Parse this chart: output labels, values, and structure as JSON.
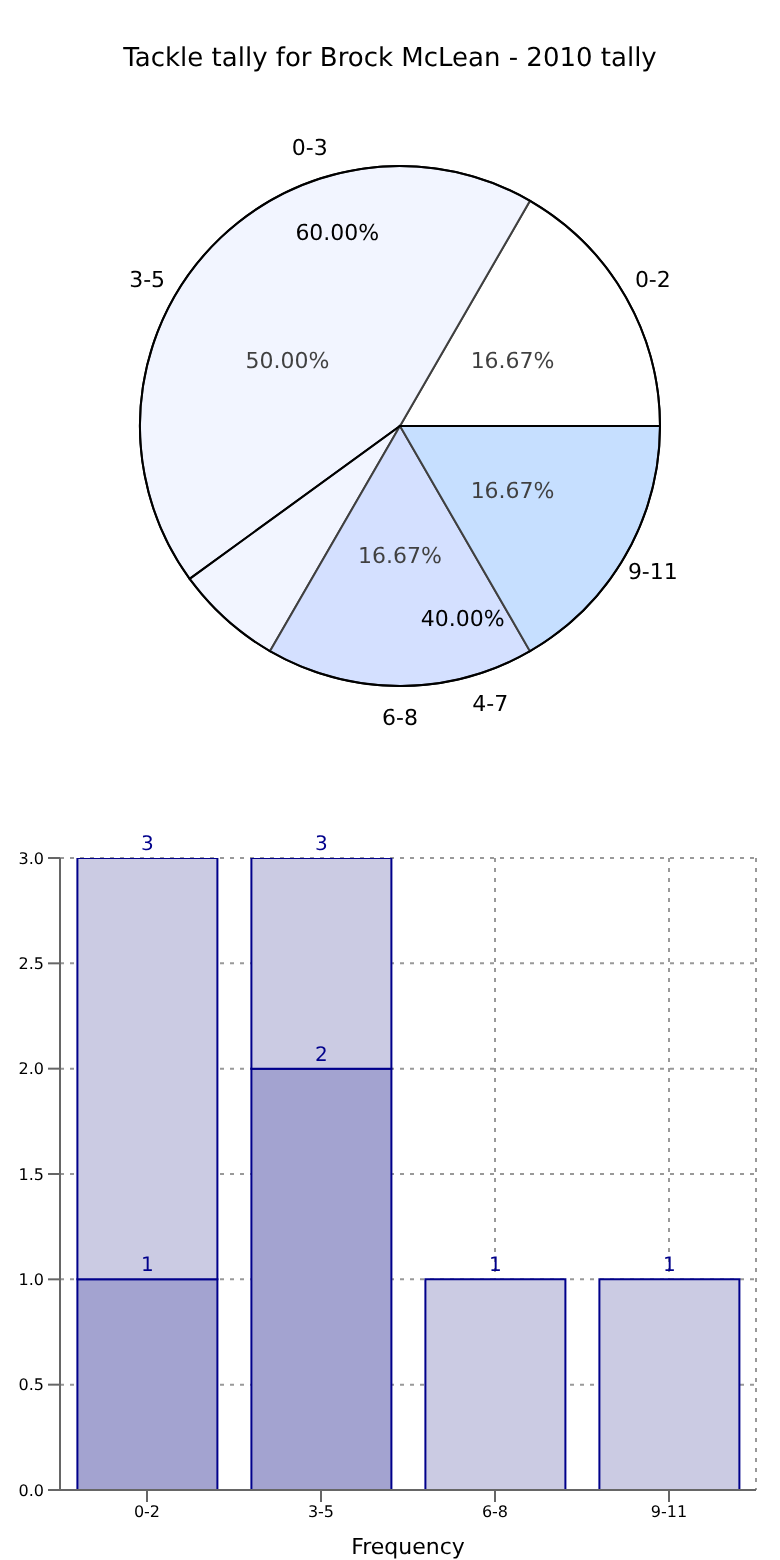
{
  "chart_data": [
    {
      "type": "pie",
      "title": "Tackle tally for Brock McLean - 2010 tally",
      "categories": [
        "0-3",
        "4-7"
      ],
      "values": [
        60,
        40
      ],
      "colors": [
        "#ffffff",
        "#ffffff"
      ],
      "value_labels": [
        "60.00%",
        "40.00%"
      ]
    },
    {
      "type": "pie",
      "categories": [
        "0-2",
        "3-5",
        "6-8",
        "9-11"
      ],
      "values": [
        16.67,
        50,
        16.67,
        16.67
      ],
      "colors": [
        "#ffffff",
        "#eef2ff",
        "#c6d6ff",
        "#b3d4ff"
      ],
      "value_labels": [
        "16.67%",
        "50.00%",
        "16.67%",
        "16.67%"
      ]
    },
    {
      "type": "bar",
      "xlabel": "Frequency",
      "categories": [
        "0-2",
        "3-5",
        "6-8",
        "9-11"
      ],
      "series": [
        {
          "color": "#a3a3d0",
          "values": [
            1,
            2,
            null,
            null
          ],
          "value_labels": [
            "1",
            "2",
            null,
            null
          ]
        },
        {
          "color": "#cbcbe3",
          "values": [
            2,
            1,
            1,
            1
          ]
        }
      ],
      "stacked": true,
      "totals": [
        "3",
        "3",
        "1",
        "1"
      ],
      "ylim": [
        0,
        3
      ],
      "yticks": [
        {
          "value": 0,
          "label": "0.0"
        },
        {
          "value": 0.5,
          "label": "0.5"
        },
        {
          "value": 1,
          "label": "1.0"
        },
        {
          "value": 1.5,
          "label": "1.5"
        },
        {
          "value": 2,
          "label": "2.0"
        },
        {
          "value": 2.5,
          "label": "2.5"
        },
        {
          "value": 3,
          "label": "3.0"
        }
      ],
      "grid": true
    }
  ]
}
